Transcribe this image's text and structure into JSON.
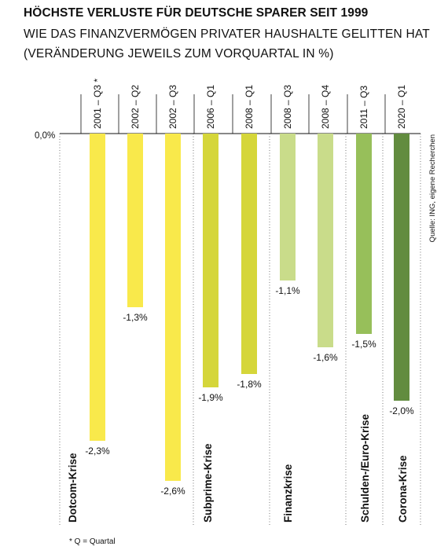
{
  "title": "HÖCHSTE VERLUSTE FÜR DEUTSCHE SPARER SEIT 1999",
  "subtitle_line1": "WIE DAS FINANZVERMÖGEN PRIVATER HAUSHALTE GELITTEN HAT",
  "subtitle_line2": "(VERÄNDERUNG JEWEILS ZUM VORQUARTAL IN %)",
  "zero_label": "0,0%",
  "source": "Quelle: ING, eigene Recherchen",
  "footnote": "* Q = Quartal",
  "chart_data": {
    "type": "bar",
    "title": "HÖCHSTE VERLUSTE FÜR DEUTSCHE SPARER SEIT 1999",
    "subtitle": "WIE DAS FINANZVERMÖGEN PRIVATER HAUSHALTE GELITTEN HAT (VERÄNDERUNG JEWEILS ZUM VORQUARTAL IN %)",
    "ylim": [
      -2.6,
      0
    ],
    "categories": [
      "2001 – Q3 *",
      "2002 – Q2",
      "2002 – Q3",
      "2006 – Q1",
      "2008 – Q1",
      "2008 – Q3",
      "2008 – Q4",
      "2011 – Q3",
      "2020 – Q1"
    ],
    "values": [
      -2.3,
      -1.3,
      -2.6,
      -1.9,
      -1.8,
      -1.1,
      -1.6,
      -1.5,
      -2.0
    ],
    "value_labels": [
      "-2,3%",
      "-1,3%",
      "-2,6%",
      "-1,9%",
      "-1,8%",
      "-1,1%",
      "-1,6%",
      "-1,5%",
      "-2,0%"
    ],
    "colors": [
      "#f9e94b",
      "#f9e94b",
      "#f9e94b",
      "#d5d63a",
      "#d5d63a",
      "#c9dc8a",
      "#c9dc8a",
      "#97bf5a",
      "#628c3f"
    ],
    "groups": [
      {
        "name": "Dotcom-Krise",
        "bars": [
          0,
          1,
          2
        ]
      },
      {
        "name": "Subprime-Krise",
        "bars": [
          3,
          4
        ]
      },
      {
        "name": "Finanzkrise",
        "bars": [
          5,
          6
        ]
      },
      {
        "name": "Schulden-/Euro-Krise",
        "bars": [
          7
        ]
      },
      {
        "name": "Corona-Krise",
        "bars": [
          8
        ]
      }
    ]
  }
}
